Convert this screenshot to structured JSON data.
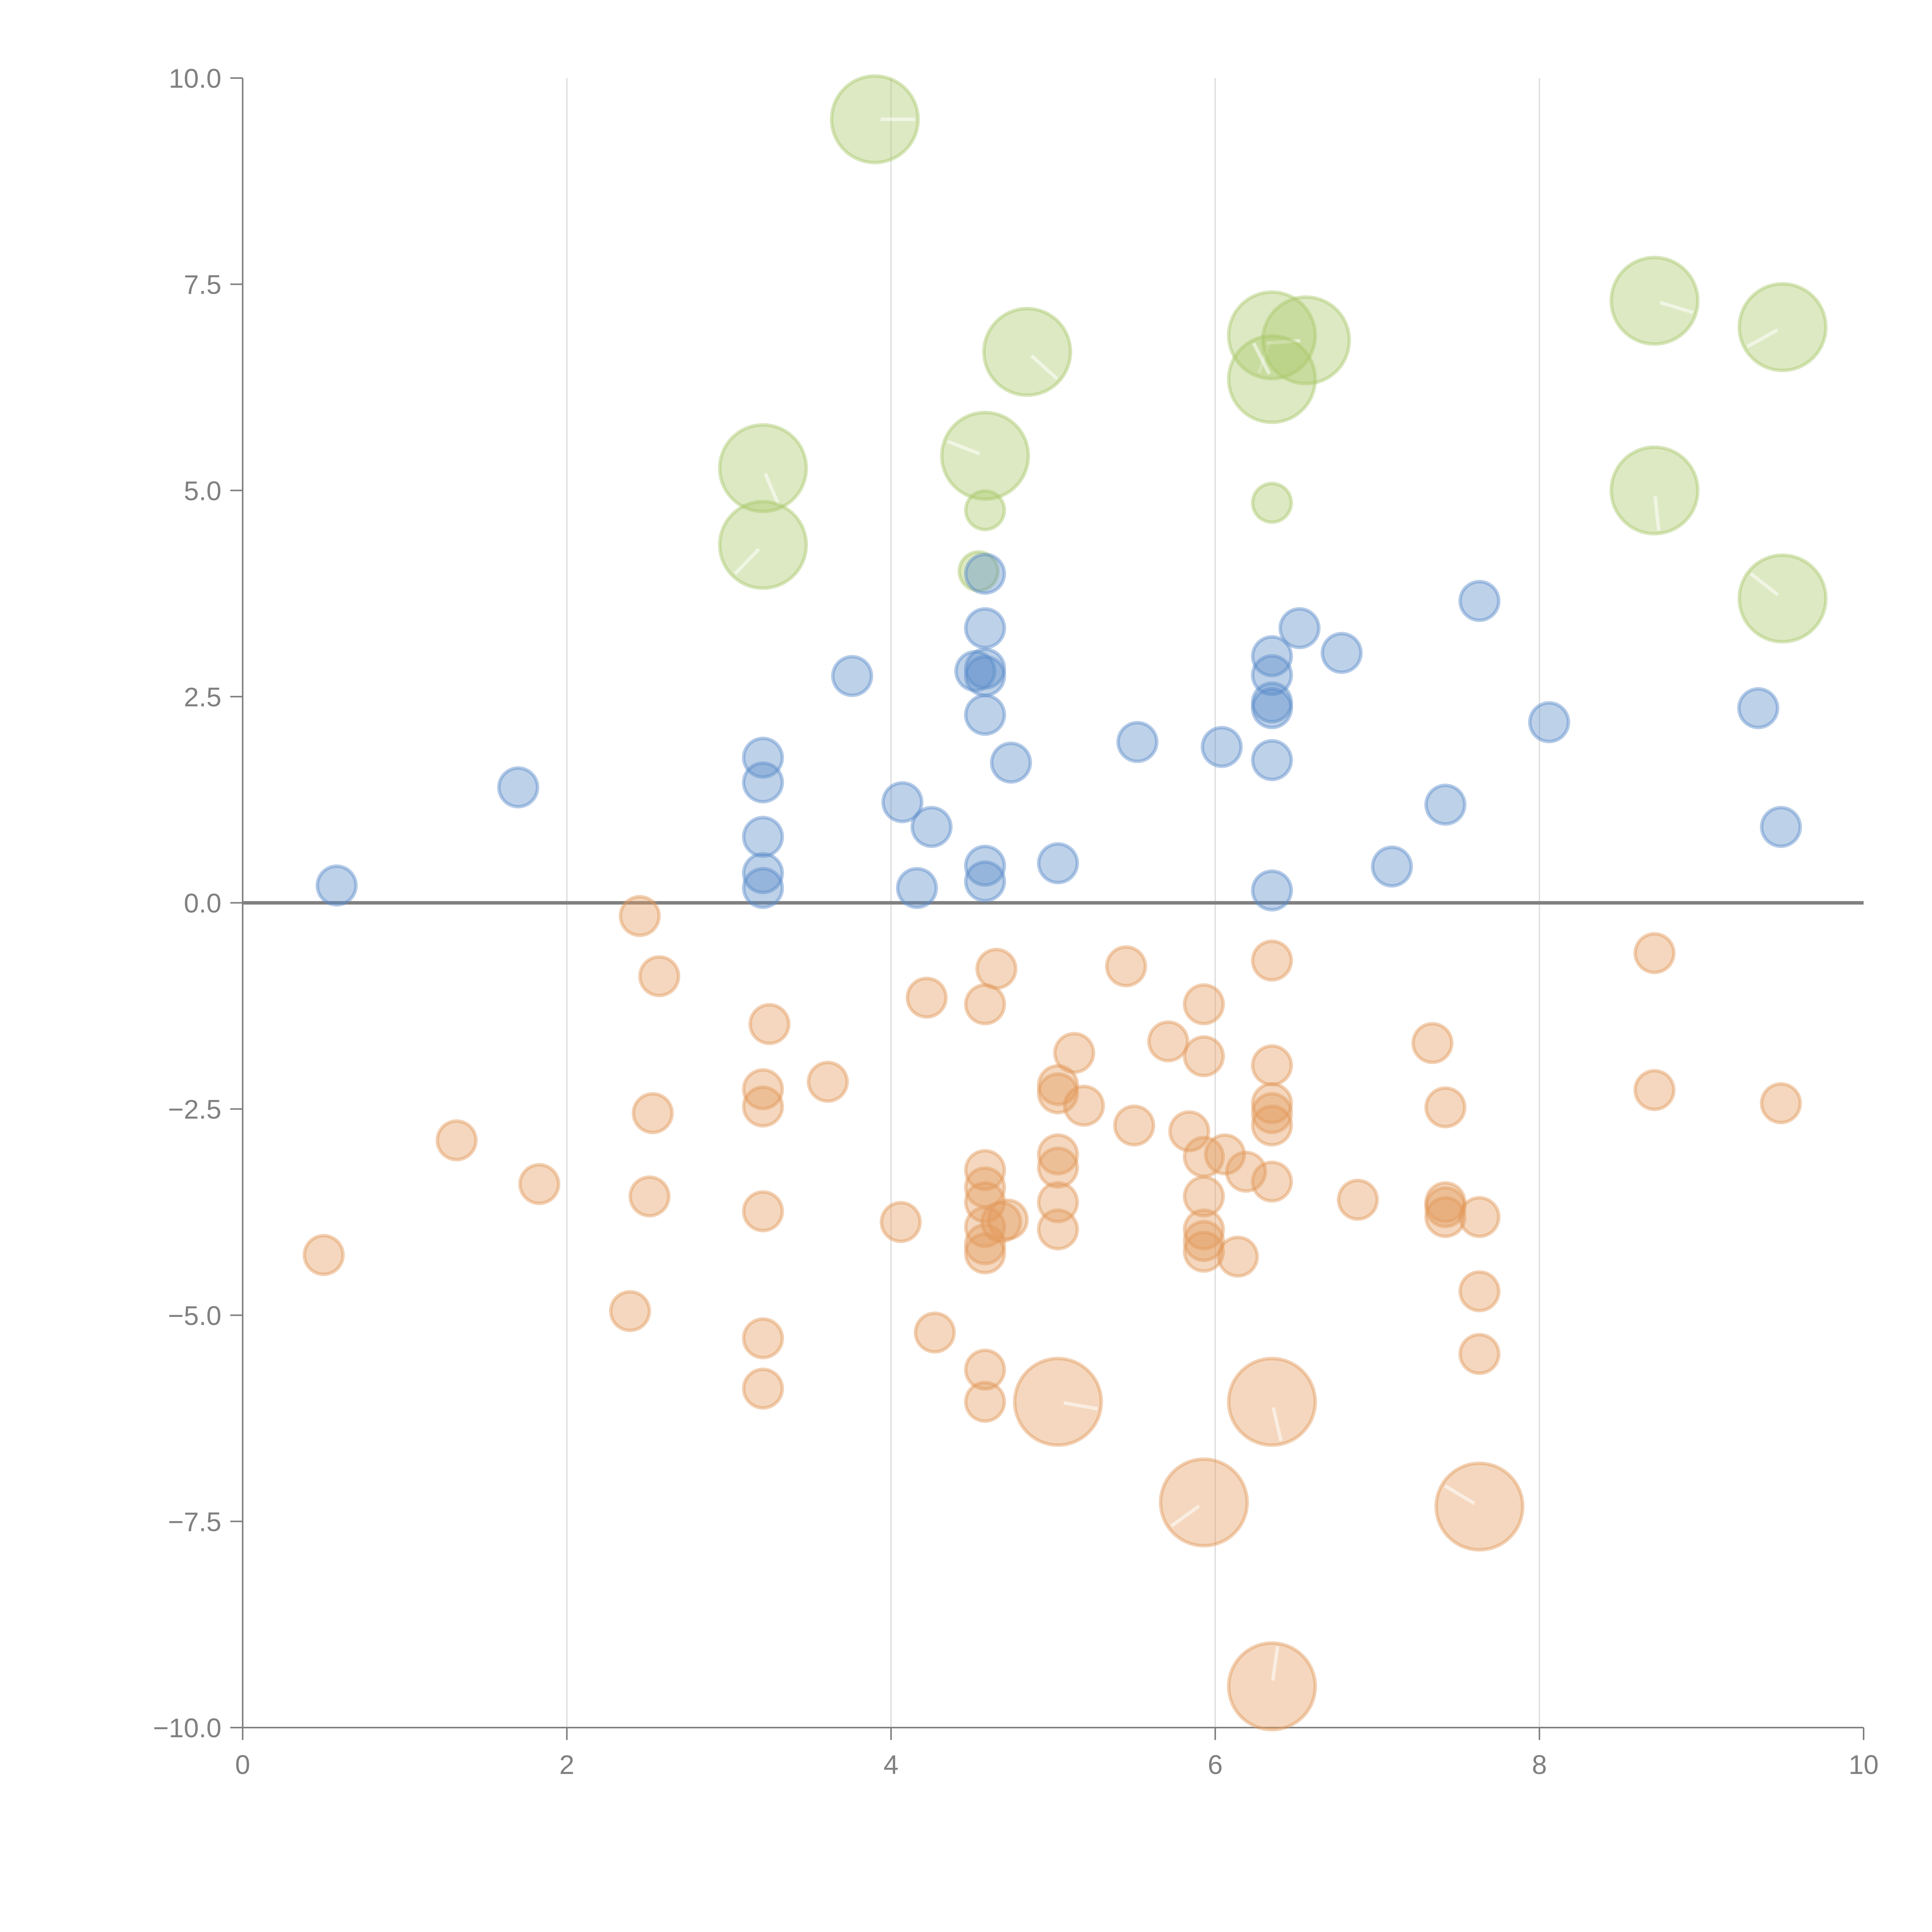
{
  "chart_data": {
    "type": "scatter",
    "title": "",
    "xlabel": "",
    "ylabel": "",
    "xlim": [
      0,
      10
    ],
    "ylim": [
      -10,
      10
    ],
    "x_ticks": [
      "0",
      "2",
      "4",
      "6",
      "8",
      "10"
    ],
    "x_tick_values": [
      0,
      2,
      4,
      6,
      8,
      10
    ],
    "y_ticks": [
      "10.0",
      "7.5",
      "5.0",
      "2.5",
      "0.0",
      "−2.5",
      "−5.0",
      "−7.5",
      "−10.0"
    ],
    "y_tick_values": [
      10,
      7.5,
      5,
      2.5,
      0,
      -2.5,
      -5,
      -7.5,
      -10
    ],
    "grid": "vertical at x ticks",
    "zero_line": true,
    "legend": "none",
    "series": [
      {
        "name": "blue",
        "color": "#5b8cc9",
        "size_class": "small",
        "points": [
          [
            0.58,
            0.21
          ],
          [
            1.7,
            1.4
          ],
          [
            3.21,
            1.76
          ],
          [
            3.21,
            1.46
          ],
          [
            3.21,
            0.8
          ],
          [
            3.21,
            0.36
          ],
          [
            3.21,
            0.18
          ],
          [
            3.76,
            2.75
          ],
          [
            4.07,
            1.22
          ],
          [
            4.25,
            0.92
          ],
          [
            4.16,
            0.18
          ],
          [
            4.58,
            3.99
          ],
          [
            4.58,
            3.33
          ],
          [
            4.52,
            2.81
          ],
          [
            4.58,
            2.84
          ],
          [
            4.58,
            2.75
          ],
          [
            4.58,
            2.28
          ],
          [
            4.74,
            1.7
          ],
          [
            4.58,
            0.45
          ],
          [
            4.58,
            0.26
          ],
          [
            5.03,
            0.48
          ],
          [
            5.52,
            1.95
          ],
          [
            6.04,
            1.89
          ],
          [
            6.35,
            2.99
          ],
          [
            6.35,
            2.76
          ],
          [
            6.35,
            2.43
          ],
          [
            6.35,
            2.36
          ],
          [
            6.35,
            1.73
          ],
          [
            6.35,
            0.15
          ],
          [
            6.52,
            3.33
          ],
          [
            6.78,
            3.03
          ],
          [
            7.09,
            0.44
          ],
          [
            7.42,
            1.19
          ],
          [
            7.63,
            3.66
          ],
          [
            8.06,
            2.19
          ],
          [
            9.35,
            2.36
          ],
          [
            9.49,
            0.92
          ]
        ]
      },
      {
        "name": "green",
        "color": "#a9c76a",
        "points": [
          [
            3.9,
            9.5,
            "large"
          ],
          [
            3.21,
            5.27,
            "large"
          ],
          [
            3.21,
            4.34,
            "large"
          ],
          [
            4.58,
            5.42,
            "large"
          ],
          [
            4.58,
            4.76,
            "small"
          ],
          [
            4.54,
            4.02,
            "small"
          ],
          [
            4.84,
            6.68,
            "large"
          ],
          [
            6.35,
            6.88,
            "large"
          ],
          [
            6.56,
            6.82,
            "large"
          ],
          [
            6.35,
            6.35,
            "large"
          ],
          [
            6.35,
            4.85,
            "small"
          ],
          [
            8.71,
            7.3,
            "large"
          ],
          [
            8.71,
            5.0,
            "large"
          ],
          [
            9.5,
            6.98,
            "large"
          ],
          [
            9.5,
            3.69,
            "large"
          ]
        ]
      },
      {
        "name": "orange",
        "color": "#e39a5c",
        "points": [
          [
            2.45,
            -0.16,
            "small"
          ],
          [
            2.57,
            -0.89,
            "small"
          ],
          [
            3.25,
            -1.47,
            "small"
          ],
          [
            3.21,
            -2.26,
            "small"
          ],
          [
            3.21,
            -2.47,
            "small"
          ],
          [
            3.61,
            -2.17,
            "small"
          ],
          [
            1.32,
            -2.88,
            "small"
          ],
          [
            2.53,
            -2.55,
            "small"
          ],
          [
            1.83,
            -3.41,
            "small"
          ],
          [
            2.51,
            -3.56,
            "small"
          ],
          [
            3.21,
            -3.74,
            "small"
          ],
          [
            0.5,
            -4.27,
            "small"
          ],
          [
            2.39,
            -4.95,
            "small"
          ],
          [
            3.21,
            -5.28,
            "small"
          ],
          [
            3.21,
            -5.89,
            "small"
          ],
          [
            4.06,
            -3.87,
            "small"
          ],
          [
            4.22,
            -1.15,
            "small"
          ],
          [
            4.27,
            -5.21,
            "small"
          ],
          [
            4.58,
            -1.23,
            "small"
          ],
          [
            4.65,
            -0.8,
            "small"
          ],
          [
            4.58,
            -3.24,
            "small"
          ],
          [
            4.58,
            -3.45,
            "small"
          ],
          [
            4.58,
            -3.63,
            "small"
          ],
          [
            4.58,
            -3.93,
            "small"
          ],
          [
            4.58,
            -4.14,
            "small"
          ],
          [
            4.58,
            -4.25,
            "small"
          ],
          [
            4.68,
            -3.87,
            "small"
          ],
          [
            4.72,
            -3.84,
            "small"
          ],
          [
            4.58,
            -5.66,
            "small"
          ],
          [
            4.58,
            -6.05,
            "small"
          ],
          [
            5.03,
            -2.21,
            "small"
          ],
          [
            5.03,
            -2.31,
            "small"
          ],
          [
            5.13,
            -1.82,
            "small"
          ],
          [
            5.19,
            -2.46,
            "small"
          ],
          [
            5.03,
            -3.05,
            "small"
          ],
          [
            5.03,
            -3.21,
            "small"
          ],
          [
            5.03,
            -3.63,
            "small"
          ],
          [
            5.03,
            -3.96,
            "small"
          ],
          [
            5.45,
            -0.77,
            "small"
          ],
          [
            5.5,
            -2.7,
            "small"
          ],
          [
            5.71,
            -1.68,
            "small"
          ],
          [
            5.84,
            -2.77,
            "small"
          ],
          [
            5.93,
            -1.23,
            "small"
          ],
          [
            5.93,
            -1.86,
            "small"
          ],
          [
            5.93,
            -3.08,
            "small"
          ],
          [
            5.93,
            -3.56,
            "small"
          ],
          [
            5.93,
            -3.96,
            "small"
          ],
          [
            5.93,
            -4.1,
            "small"
          ],
          [
            5.93,
            -4.23,
            "small"
          ],
          [
            6.06,
            -3.05,
            "small"
          ],
          [
            6.14,
            -4.29,
            "small"
          ],
          [
            6.19,
            -3.26,
            "small"
          ],
          [
            6.35,
            -0.7,
            "small"
          ],
          [
            6.35,
            -1.97,
            "small"
          ],
          [
            6.35,
            -2.43,
            "small"
          ],
          [
            6.35,
            -2.55,
            "small"
          ],
          [
            6.35,
            -2.7,
            "small"
          ],
          [
            6.35,
            -3.38,
            "small"
          ],
          [
            6.88,
            -3.6,
            "small"
          ],
          [
            7.34,
            -1.7,
            "small"
          ],
          [
            7.42,
            -2.48,
            "small"
          ],
          [
            7.42,
            -3.63,
            "small"
          ],
          [
            7.42,
            -3.69,
            "small"
          ],
          [
            7.42,
            -3.81,
            "small"
          ],
          [
            7.63,
            -3.81,
            "small"
          ],
          [
            7.63,
            -4.71,
            "small"
          ],
          [
            7.63,
            -5.47,
            "small"
          ],
          [
            8.71,
            -0.61,
            "small"
          ],
          [
            8.71,
            -2.27,
            "small"
          ],
          [
            9.49,
            -2.43,
            "small"
          ],
          [
            5.03,
            -6.05,
            "large"
          ],
          [
            6.35,
            -6.05,
            "large"
          ],
          [
            5.93,
            -7.27,
            "large"
          ],
          [
            7.63,
            -7.32,
            "large"
          ],
          [
            6.35,
            -9.5,
            "large"
          ]
        ]
      }
    ]
  }
}
